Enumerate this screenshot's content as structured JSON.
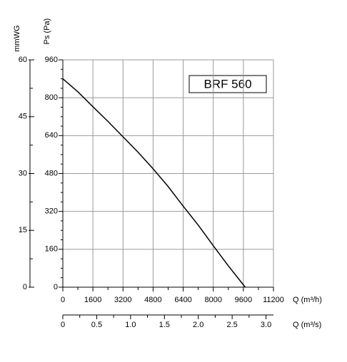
{
  "chart_data": {
    "type": "line",
    "title": "BRF 560",
    "ylabel": "Ps (Pa)",
    "y2label": "mmWG",
    "xlabel": "Q (m³/h)",
    "x2label": "Q (m³/s)",
    "x": [
      0,
      800,
      1600,
      2400,
      3200,
      4000,
      4800,
      5600,
      6400,
      7200,
      8000,
      8800,
      9700
    ],
    "series": [
      {
        "name": "BRF 560",
        "color": "#000000",
        "values": [
          880,
          825,
          762,
          700,
          635,
          570,
          500,
          425,
          342,
          262,
          175,
          90,
          0
        ]
      }
    ],
    "xlim": [
      0,
      11200
    ],
    "xticks": [
      0,
      1600,
      3200,
      4800,
      6400,
      8000,
      9600,
      11200
    ],
    "ylim": [
      0,
      960
    ],
    "yticks": [
      0,
      160,
      320,
      480,
      640,
      800,
      960
    ],
    "y2lim": [
      0,
      60
    ],
    "y2ticks": [
      0,
      15,
      30,
      45,
      60
    ],
    "x2lim": [
      0,
      3.11
    ],
    "x2ticks": [
      0,
      0.5,
      {
        "value": 1,
        "label": "1.0"
      },
      1.5,
      {
        "value": 2,
        "label": "2.0"
      },
      2.5,
      {
        "value": 3,
        "label": "3.0"
      }
    ],
    "grid": true
  }
}
